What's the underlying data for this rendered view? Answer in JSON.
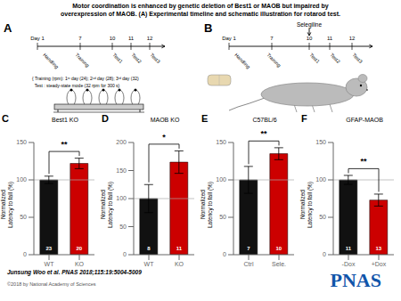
{
  "title": "Motor coordination is enhanced by genetic deletion of Best1 or MAOB but impaired by\noverexpression of MAOB. (A) Experimental timeline and schematic illustration for rotarod test.",
  "schematics": [
    {
      "label": "A",
      "days": [
        "Day 1",
        "7",
        "10",
        "11",
        "12"
      ],
      "stages": [
        "Handling",
        "Training",
        "Test1",
        "Test2",
        "Test3"
      ],
      "notes": [
        "{ Training (rpm): 1ˢᵗ day (24); 2ⁿᵈ day (28); 3ʳᵈ day (32)",
        "  Test : steady-state mode (32 rpm for 300 s)"
      ],
      "colors": [
        "#cccccc"
      ]
    },
    {
      "label": "B",
      "days": [
        "Day 1",
        "7",
        "10",
        "11",
        "12"
      ],
      "stages": [
        "Handling",
        "Training",
        "Test1",
        "Test2",
        "Test3"
      ],
      "notes": [
        "Selegiline"
      ],
      "colors": [
        "#bbbbbb",
        "#e8d8b0"
      ]
    }
  ],
  "chart_data": [
    {
      "type": "bar",
      "label": "C",
      "title": "Best1 KO",
      "categories": [
        "WT",
        "KO"
      ],
      "values": [
        100,
        122
      ],
      "errors": [
        5,
        7
      ],
      "colors": [
        "#111111",
        "#cc0000"
      ],
      "n_labels": [
        "23",
        "20"
      ],
      "significance": "**",
      "ylabel": "Normalized\nLatency to fall (%)",
      "ylim": [
        0,
        150
      ],
      "yticks": [
        0,
        50,
        100,
        150
      ],
      "reference_line": 100
    },
    {
      "type": "bar",
      "label": "D",
      "title": "MAOB KO",
      "categories": [
        "WT",
        "KO"
      ],
      "values": [
        100,
        165
      ],
      "errors": [
        25,
        20
      ],
      "colors": [
        "#111111",
        "#cc0000"
      ],
      "n_labels": [
        "8",
        "11"
      ],
      "significance": "*",
      "ylabel": "Normalized\nLatency to fall (%)",
      "ylim": [
        0,
        200
      ],
      "yticks": [
        0,
        50,
        100,
        150,
        200
      ],
      "reference_line": 100
    },
    {
      "type": "bar",
      "label": "E",
      "title": "C57BL/6",
      "categories": [
        "Ctrl",
        "Sele."
      ],
      "values": [
        100,
        135
      ],
      "errors": [
        18,
        8
      ],
      "colors": [
        "#111111",
        "#cc0000"
      ],
      "n_labels": [
        "7",
        "10"
      ],
      "significance": "**",
      "ylabel": "Normalized\nLatency to fall (%)",
      "ylim": [
        0,
        150
      ],
      "yticks": [
        0,
        50,
        100,
        150
      ],
      "reference_line": 100
    },
    {
      "type": "bar",
      "label": "F",
      "title": "GFAP-MAOB",
      "categories": [
        "-Dox",
        "+Dox"
      ],
      "values": [
        100,
        73
      ],
      "errors": [
        6,
        8
      ],
      "colors": [
        "#111111",
        "#cc0000"
      ],
      "n_labels": [
        "11",
        "13"
      ],
      "significance": "**",
      "ylabel": "Normalized\nLatency to fall (%)",
      "ylim": [
        0,
        150
      ],
      "yticks": [
        0,
        50,
        100,
        150
      ],
      "reference_line": 100
    }
  ],
  "annotations": [
    {
      "text": "Junsung Woo et al. PNAS 2018;115:19:5004-5009"
    },
    {
      "text": "©2018 by National Academy of Sciences",
      "color": "#555555"
    },
    {
      "text": "PNAS",
      "color": "#1155aa"
    }
  ]
}
